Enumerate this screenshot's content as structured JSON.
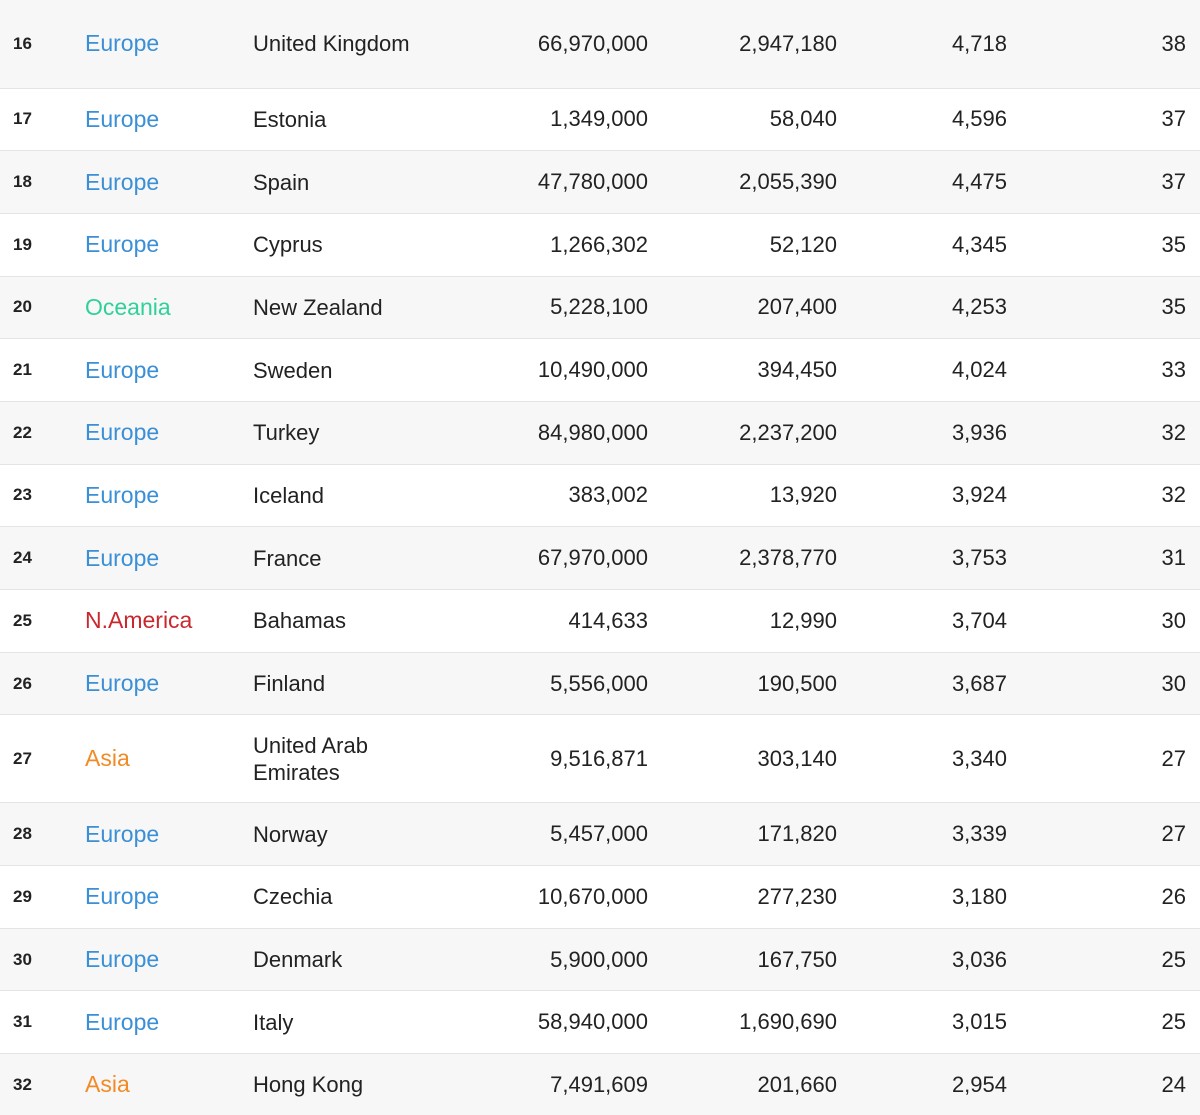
{
  "colors": {
    "Europe": "#3a8fd6",
    "Oceania": "#2fd19a",
    "N.America": "#c9282e",
    "Asia": "#f28a25"
  },
  "rows": [
    {
      "rank": "16",
      "continent": "Europe",
      "country": "United Kingdom",
      "population": "66,970,000",
      "col2": "2,947,180",
      "col3": "4,718",
      "col4": "38"
    },
    {
      "rank": "17",
      "continent": "Europe",
      "country": "Estonia",
      "population": "1,349,000",
      "col2": "58,040",
      "col3": "4,596",
      "col4": "37"
    },
    {
      "rank": "18",
      "continent": "Europe",
      "country": "Spain",
      "population": "47,780,000",
      "col2": "2,055,390",
      "col3": "4,475",
      "col4": "37"
    },
    {
      "rank": "19",
      "continent": "Europe",
      "country": "Cyprus",
      "population": "1,266,302",
      "col2": "52,120",
      "col3": "4,345",
      "col4": "35"
    },
    {
      "rank": "20",
      "continent": "Oceania",
      "country": "New Zealand",
      "population": "5,228,100",
      "col2": "207,400",
      "col3": "4,253",
      "col4": "35"
    },
    {
      "rank": "21",
      "continent": "Europe",
      "country": "Sweden",
      "population": "10,490,000",
      "col2": "394,450",
      "col3": "4,024",
      "col4": "33"
    },
    {
      "rank": "22",
      "continent": "Europe",
      "country": "Turkey",
      "population": "84,980,000",
      "col2": "2,237,200",
      "col3": "3,936",
      "col4": "32"
    },
    {
      "rank": "23",
      "continent": "Europe",
      "country": "Iceland",
      "population": "383,002",
      "col2": "13,920",
      "col3": "3,924",
      "col4": "32"
    },
    {
      "rank": "24",
      "continent": "Europe",
      "country": "France",
      "population": "67,970,000",
      "col2": "2,378,770",
      "col3": "3,753",
      "col4": "31"
    },
    {
      "rank": "25",
      "continent": "N.America",
      "country": "Bahamas",
      "population": "414,633",
      "col2": "12,990",
      "col3": "3,704",
      "col4": "30"
    },
    {
      "rank": "26",
      "continent": "Europe",
      "country": "Finland",
      "population": "5,556,000",
      "col2": "190,500",
      "col3": "3,687",
      "col4": "30"
    },
    {
      "rank": "27",
      "continent": "Asia",
      "country": "United Arab Emirates",
      "population": "9,516,871",
      "col2": "303,140",
      "col3": "3,340",
      "col4": "27"
    },
    {
      "rank": "28",
      "continent": "Europe",
      "country": "Norway",
      "population": "5,457,000",
      "col2": "171,820",
      "col3": "3,339",
      "col4": "27"
    },
    {
      "rank": "29",
      "continent": "Europe",
      "country": "Czechia",
      "population": "10,670,000",
      "col2": "277,230",
      "col3": "3,180",
      "col4": "26"
    },
    {
      "rank": "30",
      "continent": "Europe",
      "country": "Denmark",
      "population": "5,900,000",
      "col2": "167,750",
      "col3": "3,036",
      "col4": "25"
    },
    {
      "rank": "31",
      "continent": "Europe",
      "country": "Italy",
      "population": "58,940,000",
      "col2": "1,690,690",
      "col3": "3,015",
      "col4": "25"
    },
    {
      "rank": "32",
      "continent": "Asia",
      "country": "Hong Kong",
      "population": "7,491,609",
      "col2": "201,660",
      "col3": "2,954",
      "col4": "24"
    }
  ]
}
